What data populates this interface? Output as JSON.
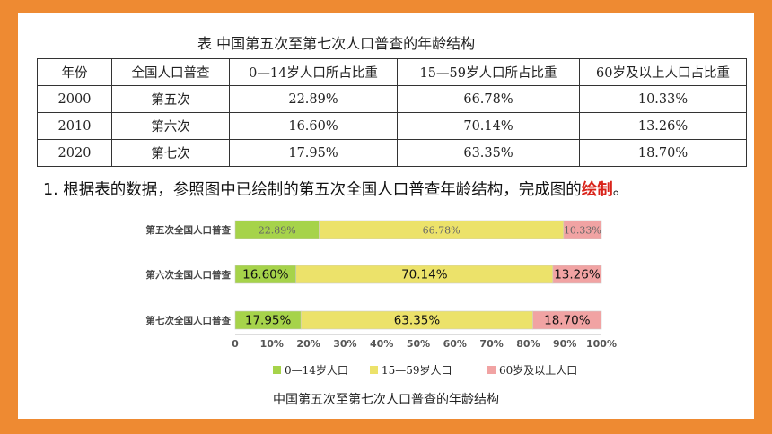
{
  "table": {
    "title": "表 中国第五次至第七次人口普查的年龄结构",
    "headers": [
      "年份",
      "全国人口普查",
      "0—14岁人口所占比重",
      "15—59岁人口所占比重",
      "60岁及以上人口占比重"
    ],
    "rows": [
      [
        "2000",
        "第五次",
        "22.89%",
        "66.78%",
        "10.33%"
      ],
      [
        "2010",
        "第六次",
        "16.60%",
        "70.14%",
        "13.26%"
      ],
      [
        "2020",
        "第七次",
        "17.95%",
        "63.35%",
        "18.70%"
      ]
    ]
  },
  "question": {
    "prefix": "1. 根据表的数据，参照图中已绘制的第五次全国人口普查年龄结构，完成图的",
    "highlight": "绘制",
    "suffix": "。"
  },
  "colors": {
    "background": "#ee8a32",
    "green": "#a6d34a",
    "yellow": "#ece26a",
    "pink": "#f1a3a3"
  },
  "chart_data": {
    "type": "bar",
    "orientation": "horizontal",
    "stacked": true,
    "title": "中国第五次至第七次人口普查的年龄结构",
    "categories": [
      "第五次全国人口普查",
      "第六次全国人口普查",
      "第七次全国人口普查"
    ],
    "series": [
      {
        "name": "0—14岁人口",
        "values": [
          22.89,
          16.6,
          17.95
        ],
        "labels": [
          "22.89%",
          "16.60%",
          "17.95%"
        ],
        "color": "#a6d34a"
      },
      {
        "name": "15—59岁人口",
        "values": [
          66.78,
          70.14,
          63.35
        ],
        "labels": [
          "66.78%",
          "70.14%",
          "63.35%"
        ],
        "color": "#ece26a"
      },
      {
        "name": "60岁及以上人口",
        "values": [
          10.33,
          13.26,
          18.7
        ],
        "labels": [
          "10.33%",
          "13.26%",
          "18.70%"
        ],
        "color": "#f1a3a3"
      }
    ],
    "xlim": [
      0,
      100
    ],
    "x_ticks": [
      "0",
      "10%",
      "20%",
      "30%",
      "40%",
      "50%",
      "60%",
      "70%",
      "80%",
      "90%",
      "100%"
    ],
    "legend": "bottom",
    "grid": false
  }
}
